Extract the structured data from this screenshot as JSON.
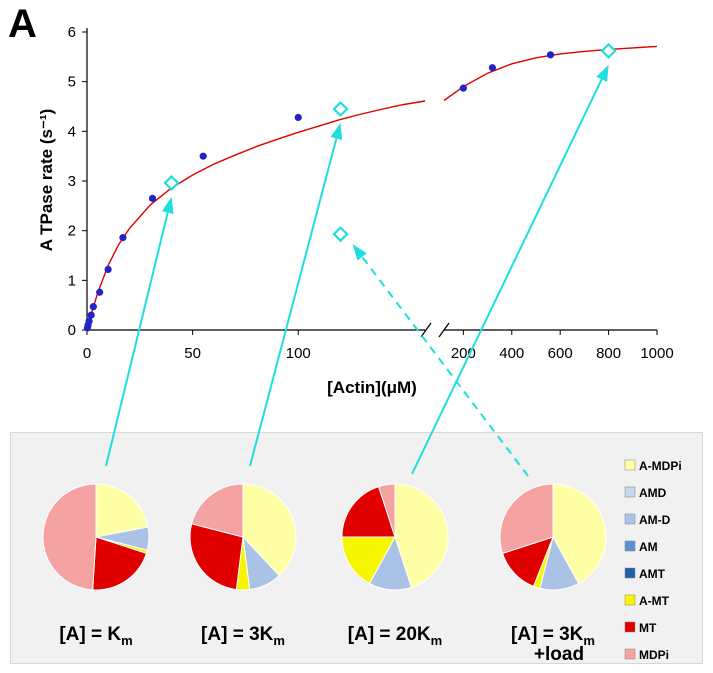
{
  "panel_label": "A",
  "chart_data": [
    {
      "type": "scatter",
      "title": "",
      "ylabel": "A TPase rate (s⁻¹)",
      "xlabel": "[Actin](μM)",
      "ylim": [
        0,
        6
      ],
      "yticks": [
        "0",
        "1",
        "2",
        "3",
        "4",
        "5",
        "6"
      ],
      "x_axis_segments": [
        {
          "xlim": [
            0,
            160
          ],
          "ticks": [
            "0",
            "50",
            "100"
          ],
          "tick_values": [
            0,
            50,
            100
          ]
        },
        {
          "xlim": [
            120,
            1000
          ],
          "ticks": [
            "200",
            "400",
            "600",
            "800",
            "1000"
          ],
          "tick_values": [
            200,
            400,
            600,
            800,
            1000
          ]
        }
      ],
      "axis_break": true,
      "series": [
        {
          "marker": "filled-circle",
          "color": "#2323c8",
          "x": [
            0.2,
            0.5,
            1,
            2,
            3,
            6,
            10,
            17,
            31,
            55,
            100,
            200,
            320,
            560
          ],
          "y": [
            0.04,
            0.1,
            0.18,
            0.3,
            0.47,
            0.76,
            1.22,
            1.86,
            2.65,
            3.5,
            4.28,
            4.87,
            5.28,
            5.54
          ]
        },
        {
          "marker": "open-diamond",
          "color": "#1fdede",
          "x": [
            40,
            120,
            800
          ],
          "y": [
            2.96,
            4.45,
            5.62
          ]
        },
        {
          "marker": "open-diamond",
          "color": "#1fdede",
          "x": [
            120
          ],
          "y": [
            1.93
          ]
        },
        {
          "marker": "line",
          "color": "#e00000",
          "x": [
            0,
            2,
            5,
            10,
            15,
            20,
            30,
            40,
            50,
            60,
            70,
            80,
            90,
            100,
            110,
            120,
            130,
            140,
            150,
            160
          ],
          "y": [
            0,
            0.32,
            0.74,
            1.3,
            1.72,
            2.04,
            2.52,
            2.86,
            3.12,
            3.34,
            3.52,
            3.69,
            3.84,
            3.98,
            4.11,
            4.24,
            4.35,
            4.45,
            4.54,
            4.61
          ]
        },
        {
          "marker": "line",
          "color": "#e00000",
          "x": [
            120,
            200,
            300,
            400,
            500,
            600,
            700,
            800,
            900,
            1000
          ],
          "y": [
            4.62,
            4.9,
            5.17,
            5.36,
            5.48,
            5.56,
            5.61,
            5.65,
            5.68,
            5.71
          ]
        }
      ]
    },
    {
      "type": "pie",
      "legend_position": "right",
      "legend": [
        "A-MDPi",
        "AMD",
        "AM-D",
        "AM",
        "AMT",
        "A-MT",
        "MT",
        "MDPi"
      ],
      "colors": [
        "#ffffa6",
        "#c6d6ee",
        "#a9c2e6",
        "#5b8ed2",
        "#1f5fa8",
        "#f6f600",
        "#e00000",
        "#f4a2a2"
      ],
      "pies": [
        {
          "label": "[A] = K",
          "subscript": "m",
          "extra": "",
          "values": [
            22,
            0,
            7,
            0,
            0,
            1,
            21,
            49
          ]
        },
        {
          "label": "[A] = 3K",
          "subscript": "m",
          "extra": "",
          "values": [
            38,
            0,
            10,
            0,
            0,
            4,
            27,
            21
          ]
        },
        {
          "label": "[A] = 20K",
          "subscript": "m",
          "extra": "",
          "values": [
            45,
            0,
            13,
            0,
            0,
            17,
            20,
            5
          ]
        },
        {
          "label": "[A] = 3K",
          "subscript": "m",
          "extra": "+load",
          "values": [
            42,
            0,
            12,
            0,
            0,
            2,
            14,
            30
          ]
        }
      ]
    }
  ]
}
